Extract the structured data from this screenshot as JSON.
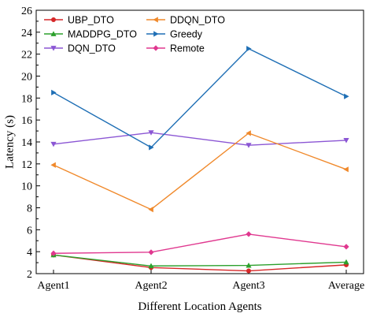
{
  "chart_data": {
    "type": "line",
    "categories": [
      "Agent1",
      "Agent2",
      "Agent3",
      "Average"
    ],
    "xlabel": "Different Location Agents",
    "ylabel": "Latency (s)",
    "ylim": [
      2,
      26
    ],
    "yticks": [
      2,
      4,
      6,
      8,
      10,
      12,
      14,
      16,
      18,
      20,
      22,
      24,
      26
    ],
    "grid": false,
    "legend_position": "top-left",
    "series": [
      {
        "name": "UBP_DTO",
        "color": "#d62728",
        "marker": "circle",
        "values": [
          3.7,
          2.55,
          2.25,
          2.8
        ]
      },
      {
        "name": "MADDPG_DTO",
        "color": "#2ca02c",
        "marker": "triangle-up",
        "values": [
          3.7,
          2.7,
          2.75,
          3.05
        ]
      },
      {
        "name": "DQN_DTO",
        "color": "#8b56d4",
        "marker": "triangle-down",
        "values": [
          13.8,
          14.85,
          13.7,
          14.15
        ]
      },
      {
        "name": "DDQN_DTO",
        "color": "#f0892b",
        "marker": "triangle-left",
        "values": [
          11.9,
          7.85,
          14.8,
          11.5
        ]
      },
      {
        "name": "Greedy",
        "color": "#1f6fb5",
        "marker": "triangle-right",
        "values": [
          18.5,
          13.5,
          22.5,
          18.15
        ]
      },
      {
        "name": "Remote",
        "color": "#e0388f",
        "marker": "diamond",
        "values": [
          3.85,
          3.95,
          5.6,
          4.45
        ]
      }
    ]
  }
}
